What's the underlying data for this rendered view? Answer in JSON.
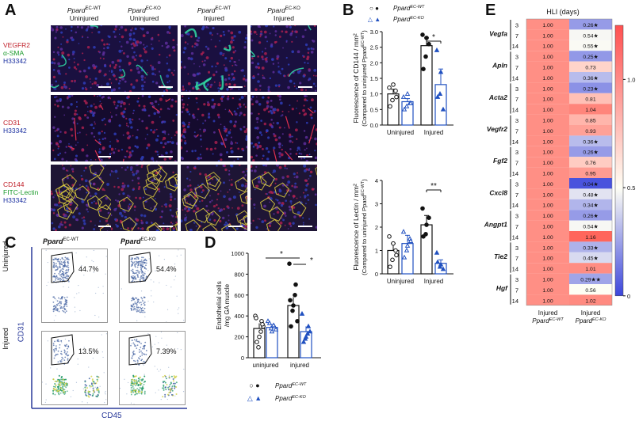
{
  "panels": {
    "A": "A",
    "B": "B",
    "C": "C",
    "D": "D",
    "E": "E"
  },
  "panelA": {
    "columns": [
      {
        "genotype": "Ppard",
        "sup": "EC-WT",
        "cond": "Uninjured"
      },
      {
        "genotype": "Ppard",
        "sup": "EC-KO",
        "cond": "Uninjured"
      },
      {
        "genotype": "Ppard",
        "sup": "EC-WT",
        "cond": "Injured"
      },
      {
        "genotype": "Ppard",
        "sup": "EC-KO",
        "cond": "Injured"
      }
    ],
    "rows": [
      {
        "labels": [
          {
            "t": "VEGFR2",
            "c": "#c0202a"
          },
          {
            "t": "α-SMA",
            "c": "#1a9a2a"
          },
          {
            "t": "H33342",
            "c": "#1a2fa0"
          }
        ]
      },
      {
        "labels": [
          {
            "t": "CD31",
            "c": "#c0202a"
          },
          {
            "t": "H33342",
            "c": "#1a2fa0"
          }
        ]
      },
      {
        "labels": [
          {
            "t": "CD144",
            "c": "#c0202a"
          },
          {
            "t": "FITC-Lectin",
            "c": "#1a9a2a"
          },
          {
            "t": "H33342",
            "c": "#1a2fa0"
          }
        ]
      }
    ]
  },
  "panelB": {
    "legend": [
      {
        "sym": "●",
        "name": "Ppard",
        "sup": "EC-WT"
      },
      {
        "sym": "▲",
        "name": "Ppard",
        "sup": "EC-KO"
      }
    ],
    "top": {
      "ylabel": "Fluorescence of CD144 / mm²",
      "ylabel2": "(Compared to uninjured Ppard",
      "ylabel2sup": "EC-WT",
      "ylabel2end": ")",
      "yticks": [
        "0.0",
        "0.5",
        "1.0",
        "1.5",
        "2.0",
        "2.5",
        "3.0"
      ],
      "xcats": [
        "Uninjured",
        "Injured"
      ],
      "sig": "*"
    },
    "bottom": {
      "ylabel": "Fluorescence of Lectin / mm²",
      "ylabel2": "(Compared to uninjured Ppard",
      "ylabel2sup": "EC-WT",
      "ylabel2end": ")",
      "yticks": [
        "0",
        "1",
        "2",
        "3",
        "4"
      ],
      "xcats": [
        "Uninjured",
        "Injured"
      ],
      "sig": "**"
    }
  },
  "panelC": {
    "cols": [
      {
        "name": "Ppard",
        "sup": "EC-WT"
      },
      {
        "name": "Ppard",
        "sup": "EC-KO"
      }
    ],
    "rows": [
      "Uninjured",
      "Injured"
    ],
    "pcts": [
      [
        "44.7%",
        "54.4%"
      ],
      [
        "13.5%",
        "7.39%"
      ]
    ],
    "ylabel": "CD31",
    "xlabel": "CD45"
  },
  "panelD": {
    "ylabel": "Endothelial cells",
    "ylabel2": "/mg GA muscle",
    "yticks": [
      "0",
      "200",
      "400",
      "600",
      "800",
      "1000"
    ],
    "xcats": [
      "uninjured",
      "injured"
    ],
    "sig": [
      "*",
      "*"
    ],
    "legend": [
      {
        "sym": "○ ●",
        "name": "Ppard",
        "sup": "EC-WT"
      },
      {
        "sym": "△ ▲",
        "name": "Ppard",
        "sup": "EC-KO"
      }
    ]
  },
  "panelE": {
    "title": "HLI (days)",
    "genes": [
      "Vegfa",
      "Apln",
      "Acta2",
      "Vegfr2",
      "Fgf2",
      "Cxcl8",
      "Angpt1",
      "Tie2",
      "Hgf"
    ],
    "days": [
      "3",
      "7",
      "14"
    ],
    "wt": [
      "1.00",
      "1.00",
      "1.00",
      "1.00",
      "1.00",
      "1.00",
      "1.00",
      "1.00",
      "1.00",
      "1.00",
      "1.00",
      "1.00",
      "1.00",
      "1.00",
      "1.00",
      "1.00",
      "1.00",
      "1.00",
      "1.00",
      "1.00",
      "1.00",
      "1.00",
      "1.00",
      "1.00",
      "1.00",
      "1.00",
      "1.00"
    ],
    "ko": [
      "0.26★",
      "0.54★",
      "0.55★",
      "0.25★",
      "0.73",
      "0.36★",
      "0.23★",
      "0.81",
      "1.04",
      "0.85",
      "0.93",
      "0.36★",
      "0.26★",
      "0.76",
      "0.95",
      "0.04★",
      "0.48★",
      "0.34★",
      "0.26★",
      "0.54★",
      "1.16",
      "0.33★",
      "0.45★",
      "1.01",
      "0.29★★",
      "0.56",
      "1.02"
    ],
    "ko_values": [
      0.26,
      0.54,
      0.55,
      0.25,
      0.73,
      0.36,
      0.23,
      0.81,
      1.04,
      0.85,
      0.93,
      0.36,
      0.26,
      0.76,
      0.95,
      0.04,
      0.48,
      0.34,
      0.26,
      0.54,
      1.16,
      0.33,
      0.45,
      1.01,
      0.29,
      0.56,
      1.02
    ],
    "colorbar": [
      "1.0",
      "0.5",
      "0"
    ],
    "xcats": [
      {
        "a": "Injured",
        "name": "Ppard",
        "sup": "EC-WT"
      },
      {
        "a": "Injured",
        "name": "Ppard",
        "sup": "EC-KO"
      }
    ]
  }
}
